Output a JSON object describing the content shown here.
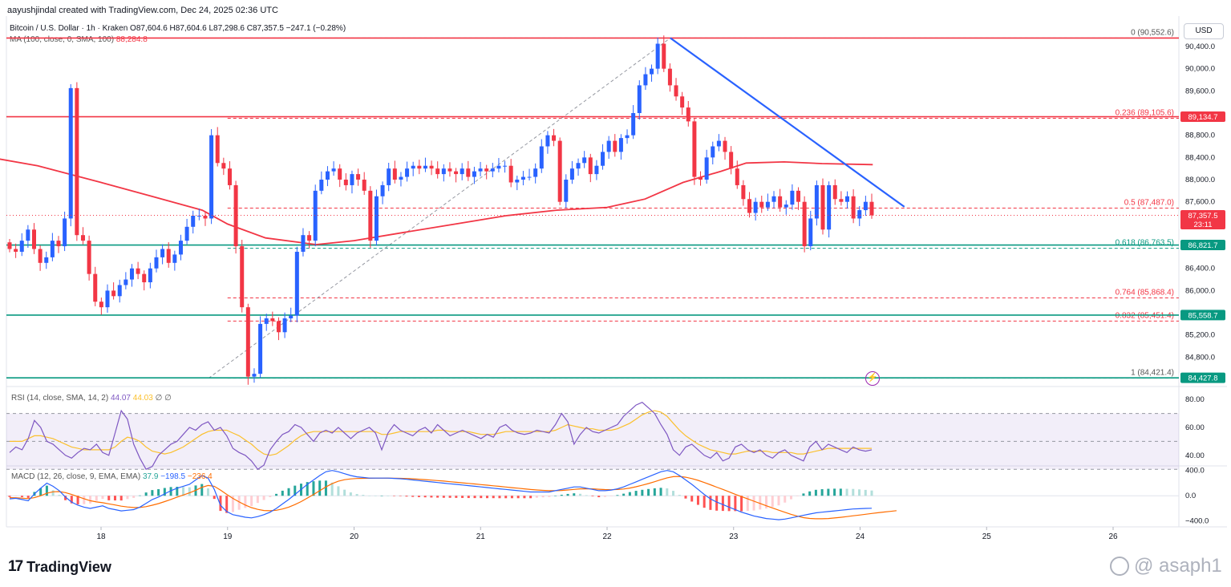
{
  "header": {
    "created": "aayushjindal created with TradingView.com, Dec 24, 2025 02:36 UTC",
    "symbol_line": "Bitcoin / U.S. Dollar · 1h · Kraken  O87,604.6  H87,604.6  L87,298.6  C87,357.5  −247.1 (−0.28%)",
    "ma_label": "MA (100, close, 0, SMA, 100)",
    "ma_value": "88,284.8",
    "currency": "USD"
  },
  "footer": {
    "brand": "TradingView",
    "watermark": "@ asaph1"
  },
  "colors": {
    "up": "#2962ff",
    "down": "#f23645",
    "ma": "#f23645",
    "support": "#089981",
    "resistance": "#f23645",
    "trend": "#2962ff",
    "rsi": "#7e57c2",
    "rsi_ma": "#fbc02d",
    "macd": "#2962ff",
    "signal": "#ff6d00"
  },
  "chart_data": {
    "type": "candlestick",
    "x_ticks": [
      "18",
      "19",
      "20",
      "21",
      "22",
      "23",
      "24",
      "25",
      "26"
    ],
    "price_axis_labels": [
      "90,400.0",
      "90,000.0",
      "89,600.0",
      "88,800.0",
      "88,400.0",
      "88,000.0",
      "87,600.0",
      "86,400.0",
      "86,000.0",
      "85,200.0",
      "84,800.0"
    ],
    "price_badges": [
      {
        "label": "89,134.7",
        "value": 89134.7,
        "kind": "resistance"
      },
      {
        "label": "87,357.5",
        "value": 87357.5,
        "kind": "last",
        "countdown": "23:11"
      },
      {
        "label": "86,821.7",
        "value": 86821.7,
        "kind": "support"
      },
      {
        "label": "85,558.7",
        "value": 85558.7,
        "kind": "support"
      },
      {
        "label": "84,427.8",
        "value": 84427.8,
        "kind": "support"
      }
    ],
    "horizontal_lines": [
      {
        "value": 90552.6,
        "kind": "resistance"
      },
      {
        "value": 89134.7,
        "kind": "resistance"
      },
      {
        "value": 86821.7,
        "kind": "support"
      },
      {
        "value": 85558.7,
        "kind": "support"
      },
      {
        "value": 84427.8,
        "kind": "support"
      }
    ],
    "fib_levels": [
      {
        "label": "0 (90,552.6)",
        "value": 90552.6
      },
      {
        "label": "0.236 (89,105.6)",
        "value": 89105.6
      },
      {
        "label": "0.5 (87,487.0)",
        "value": 87487.0
      },
      {
        "label": "0.618 (86,763.5)",
        "value": 86763.5
      },
      {
        "label": "0.764 (85,868.4)",
        "value": 85868.4
      },
      {
        "label": "0.832 (85,451.4)",
        "value": 85451.4
      },
      {
        "label": "1 (84,421.4)",
        "value": 84421.4
      }
    ],
    "trendline": {
      "from": {
        "day": 22.5,
        "price": 90552.6
      },
      "to": {
        "day": 24.35,
        "price": 87510
      }
    },
    "fib_anchor": {
      "from": {
        "day": 18.85,
        "price": 84421.4
      },
      "to": {
        "day": 22.5,
        "price": 90552.6
      }
    },
    "ma_series": [
      [
        17.0,
        88450
      ],
      [
        17.5,
        88250
      ],
      [
        18.0,
        87950
      ],
      [
        18.4,
        87700
      ],
      [
        18.8,
        87450
      ],
      [
        19.0,
        87200
      ],
      [
        19.3,
        86950
      ],
      [
        19.7,
        86830
      ],
      [
        20.0,
        86900
      ],
      [
        20.4,
        87050
      ],
      [
        20.8,
        87200
      ],
      [
        21.2,
        87350
      ],
      [
        21.6,
        87450
      ],
      [
        22.0,
        87500
      ],
      [
        22.3,
        87650
      ],
      [
        22.6,
        87950
      ],
      [
        22.9,
        88150
      ],
      [
        23.1,
        88300
      ],
      [
        23.4,
        88320
      ],
      [
        23.7,
        88290
      ],
      [
        24.1,
        88270
      ]
    ],
    "candles": [
      [
        86870,
        86750
      ],
      [
        86750,
        86700
      ],
      [
        86700,
        86900
      ],
      [
        86900,
        87100
      ],
      [
        87100,
        86750
      ],
      [
        86750,
        86500
      ],
      [
        86500,
        86600
      ],
      [
        86600,
        86900
      ],
      [
        86900,
        86800
      ],
      [
        86800,
        87300
      ],
      [
        87300,
        89650
      ],
      [
        89650,
        87000
      ],
      [
        87000,
        86900
      ],
      [
        86900,
        86300
      ],
      [
        86300,
        85800
      ],
      [
        85800,
        85700
      ],
      [
        85700,
        86000
      ],
      [
        86000,
        85900
      ],
      [
        85900,
        86100
      ],
      [
        86100,
        86200
      ],
      [
        86200,
        86400
      ],
      [
        86400,
        86300
      ],
      [
        86300,
        86150
      ],
      [
        86150,
        86400
      ],
      [
        86400,
        86600
      ],
      [
        86600,
        86750
      ],
      [
        86750,
        86500
      ],
      [
        86500,
        86650
      ],
      [
        86650,
        86900
      ],
      [
        86900,
        87150
      ],
      [
        87150,
        87350
      ],
      [
        87350,
        87350
      ],
      [
        87350,
        87300
      ],
      [
        87300,
        88800
      ],
      [
        88800,
        88300
      ],
      [
        88300,
        88200
      ],
      [
        88200,
        87900
      ],
      [
        87900,
        86800
      ],
      [
        86800,
        85700
      ],
      [
        85700,
        84450
      ],
      [
        84450,
        84500
      ],
      [
        84500,
        85400
      ],
      [
        85400,
        85500
      ],
      [
        85500,
        85450
      ],
      [
        85450,
        85250
      ],
      [
        85250,
        85500
      ],
      [
        85500,
        85550
      ],
      [
        85550,
        86700
      ],
      [
        86700,
        87000
      ],
      [
        87000,
        86900
      ],
      [
        86900,
        87800
      ],
      [
        87800,
        88000
      ],
      [
        88000,
        88150
      ],
      [
        88150,
        88200
      ],
      [
        88200,
        88000
      ],
      [
        88000,
        87900
      ],
      [
        87900,
        88100
      ],
      [
        88100,
        88000
      ],
      [
        88000,
        87800
      ],
      [
        87800,
        86900
      ],
      [
        86900,
        87700
      ],
      [
        87700,
        87900
      ],
      [
        87900,
        88200
      ],
      [
        88200,
        88000
      ],
      [
        88000,
        88050
      ],
      [
        88050,
        88200
      ],
      [
        88200,
        88250
      ],
      [
        88250,
        88200
      ],
      [
        88200,
        88250
      ],
      [
        88250,
        88200
      ],
      [
        88200,
        88100
      ],
      [
        88100,
        88200
      ],
      [
        88200,
        88150
      ],
      [
        88150,
        88100
      ],
      [
        88100,
        88200
      ],
      [
        88200,
        88050
      ],
      [
        88050,
        88150
      ],
      [
        88150,
        88200
      ],
      [
        88200,
        88150
      ],
      [
        88150,
        88200
      ],
      [
        88200,
        88250
      ],
      [
        88250,
        88250
      ],
      [
        88250,
        87950
      ],
      [
        87950,
        88000
      ],
      [
        88000,
        88050
      ],
      [
        88050,
        88050
      ],
      [
        88050,
        88200
      ],
      [
        88200,
        88600
      ],
      [
        88600,
        88800
      ],
      [
        88800,
        88700
      ],
      [
        88700,
        87600
      ],
      [
        87600,
        88000
      ],
      [
        88000,
        88200
      ],
      [
        88200,
        88300
      ],
      [
        88300,
        88400
      ],
      [
        88400,
        88100
      ],
      [
        88100,
        88250
      ],
      [
        88250,
        88500
      ],
      [
        88500,
        88700
      ],
      [
        88700,
        88500
      ],
      [
        88500,
        88750
      ],
      [
        88750,
        88800
      ],
      [
        88800,
        89200
      ],
      [
        89200,
        89700
      ],
      [
        89700,
        89900
      ],
      [
        89900,
        90000
      ],
      [
        90000,
        90450
      ],
      [
        90450,
        90000
      ],
      [
        90000,
        89700
      ],
      [
        89700,
        89500
      ],
      [
        89500,
        89300
      ],
      [
        89300,
        89050
      ],
      [
        89050,
        88050
      ],
      [
        88050,
        88000
      ],
      [
        88000,
        88400
      ],
      [
        88400,
        88600
      ],
      [
        88600,
        88700
      ],
      [
        88700,
        88500
      ],
      [
        88500,
        88200
      ],
      [
        88200,
        87900
      ],
      [
        87900,
        87650
      ],
      [
        87650,
        87400
      ],
      [
        87400,
        87600
      ],
      [
        87600,
        87500
      ],
      [
        87500,
        87600
      ],
      [
        87600,
        87700
      ],
      [
        87700,
        87500
      ],
      [
        87500,
        87550
      ],
      [
        87550,
        87800
      ],
      [
        87800,
        87600
      ],
      [
        87600,
        86800
      ],
      [
        86800,
        87300
      ],
      [
        87300,
        87900
      ],
      [
        87900,
        87100
      ],
      [
        87100,
        87900
      ],
      [
        87900,
        87650
      ],
      [
        87650,
        87600
      ],
      [
        87600,
        87700
      ],
      [
        87700,
        87300
      ],
      [
        87300,
        87450
      ],
      [
        87450,
        87600
      ],
      [
        87600,
        87357.5
      ]
    ],
    "rsi": {
      "label": "RSI (14, close, SMA, 14, 2)",
      "value": "44.07",
      "ma_value": "44.03",
      "extra": "∅ ∅",
      "axis_labels": [
        "80.00",
        "60.00",
        "40.00"
      ],
      "upper": 70,
      "lower": 30,
      "mid": 50,
      "values": [
        42,
        46,
        44,
        52,
        65,
        60,
        50,
        48,
        44,
        40,
        38,
        42,
        45,
        44,
        48,
        42,
        40,
        56,
        72,
        66,
        48,
        38,
        30,
        32,
        40,
        44,
        48,
        50,
        55,
        60,
        58,
        62,
        64,
        58,
        60,
        54,
        45,
        42,
        40,
        36,
        30,
        33,
        44,
        50,
        55,
        57,
        62,
        60,
        55,
        50,
        56,
        58,
        56,
        60,
        56,
        52,
        56,
        58,
        60,
        56,
        44,
        56,
        62,
        58,
        56,
        54,
        58,
        60,
        56,
        62,
        58,
        54,
        56,
        58,
        56,
        54,
        52,
        55,
        53,
        60,
        62,
        58,
        56,
        55,
        56,
        58,
        57,
        56,
        62,
        70,
        64,
        48,
        55,
        60,
        57,
        56,
        58,
        60,
        62,
        68,
        72,
        76,
        78,
        74,
        70,
        62,
        55,
        44,
        40,
        46,
        48,
        44,
        40,
        38,
        42,
        36,
        38,
        46,
        48,
        44,
        42,
        44,
        40,
        38,
        42,
        44,
        40,
        38,
        36,
        46,
        50,
        44,
        48,
        46,
        44,
        42,
        46,
        44,
        43,
        44
      ],
      "ma_values": [
        50,
        50,
        50,
        52,
        54,
        54,
        53,
        52,
        50,
        48,
        46,
        45,
        44,
        44,
        44,
        44,
        44,
        46,
        50,
        53,
        52,
        50,
        46,
        43,
        42,
        41,
        42,
        44,
        46,
        49,
        52,
        55,
        57,
        58,
        58,
        58,
        56,
        54,
        51,
        48,
        44,
        41,
        40,
        41,
        44,
        47,
        51,
        54,
        56,
        57,
        57,
        57,
        57,
        57,
        57,
        57,
        57,
        57,
        57,
        57,
        55,
        55,
        56,
        57,
        57,
        57,
        57,
        57,
        57,
        58,
        58,
        57,
        57,
        57,
        57,
        56,
        55,
        55,
        55,
        56,
        57,
        57,
        57,
        57,
        57,
        57,
        57,
        57,
        58,
        60,
        62,
        61,
        60,
        59,
        59,
        58,
        58,
        58,
        59,
        61,
        63,
        66,
        69,
        71,
        72,
        71,
        68,
        63,
        58,
        54,
        51,
        48,
        46,
        44,
        43,
        42,
        41,
        41,
        42,
        43,
        43,
        43,
        43,
        42,
        42,
        42,
        42,
        41,
        41,
        42,
        43,
        44,
        45,
        45,
        45,
        45,
        45,
        45,
        45,
        45
      ]
    },
    "macd": {
      "label": "MACD (12, 26, close, 9, EMA, EMA)",
      "hist_value": "37.9",
      "macd_value": "−198.5",
      "signal_value": "−236.4",
      "axis_labels": [
        "400.0",
        "0.0",
        "−400.0"
      ],
      "macd_values": [
        -50,
        -40,
        -60,
        -80,
        30,
        120,
        200,
        150,
        80,
        -20,
        -100,
        -150,
        -180,
        -200,
        -180,
        -160,
        -200,
        -220,
        -240,
        -230,
        -220,
        -180,
        -120,
        -60,
        -20,
        30,
        80,
        120,
        150,
        180,
        250,
        320,
        280,
        100,
        -150,
        -250,
        -300,
        -320,
        -340,
        -350,
        -330,
        -300,
        -260,
        -200,
        -130,
        -60,
        20,
        100,
        180,
        250,
        320,
        380,
        400,
        380,
        350,
        320,
        300,
        290,
        280,
        280,
        280,
        280,
        275,
        270,
        260,
        250,
        240,
        230,
        220,
        210,
        200,
        190,
        180,
        170,
        160,
        150,
        140,
        130,
        120,
        110,
        100,
        90,
        80,
        70,
        60,
        60,
        60,
        60,
        80,
        100,
        120,
        140,
        140,
        120,
        100,
        80,
        80,
        90,
        110,
        140,
        180,
        220,
        260,
        300,
        340,
        380,
        400,
        380,
        320,
        250,
        180,
        100,
        20,
        -50,
        -100,
        -140,
        -180,
        -220,
        -260,
        -290,
        -320,
        -340,
        -360,
        -370,
        -380,
        -370,
        -350,
        -330,
        -310,
        -290,
        -270,
        -260,
        -250,
        -240,
        -230,
        -220,
        -210,
        -205,
        -200,
        -198
      ],
      "signal_values": [
        -30,
        -32,
        -38,
        -46,
        -30,
        0,
        40,
        62,
        66,
        50,
        20,
        -14,
        -47,
        -78,
        -98,
        -110,
        -128,
        -146,
        -165,
        -178,
        -186,
        -185,
        -172,
        -150,
        -124,
        -93,
        -58,
        -22,
        12,
        46,
        87,
        134,
        163,
        150,
        90,
        22,
        -42,
        -98,
        -147,
        -188,
        -216,
        -233,
        -238,
        -230,
        -210,
        -180,
        -140,
        -92,
        -37,
        20,
        80,
        140,
        192,
        230,
        254,
        267,
        273,
        276,
        277,
        278,
        278,
        279,
        278,
        276,
        273,
        268,
        262,
        255,
        248,
        240,
        232,
        223,
        214,
        205,
        196,
        187,
        177,
        168,
        158,
        149,
        139,
        129,
        119,
        109,
        99,
        91,
        85,
        80,
        80,
        84,
        91,
        101,
        109,
        111,
        109,
        103,
        98,
        96,
        99,
        107,
        122,
        142,
        166,
        193,
        222,
        254,
        283,
        302,
        306,
        294,
        272,
        244,
        210,
        174,
        136,
        100,
        63,
        23,
        -14,
        -50,
        -86,
        -122,
        -158,
        -193,
        -228,
        -262,
        -294,
        -323,
        -346,
        -359,
        -364,
        -364,
        -360,
        -352,
        -342,
        -330,
        -318,
        -306,
        -293,
        -281,
        -269,
        -258,
        -248,
        -236
      ]
    }
  }
}
